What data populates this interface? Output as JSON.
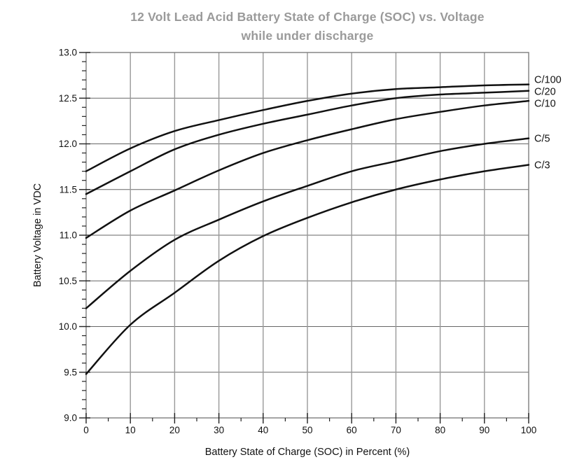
{
  "chart_data": {
    "type": "line",
    "title": "12 Volt Lead Acid Battery State of Charge (SOC) vs. Voltage while under discharge",
    "title_line1": "12 Volt Lead Acid Battery State of Charge (SOC) vs. Voltage",
    "title_line2": "while under discharge",
    "xlabel": "Battery State of Charge (SOC) in Percent (%)",
    "ylabel": "Battery Voltage in VDC",
    "xlim": [
      0,
      100
    ],
    "ylim": [
      9.0,
      13.0
    ],
    "x_tick_labels": [
      "0",
      "10",
      "20",
      "30",
      "40",
      "50",
      "60",
      "70",
      "80",
      "90",
      "100"
    ],
    "y_tick_labels": [
      "9.0",
      "9.5",
      "10.0",
      "10.5",
      "11.0",
      "11.5",
      "12.0",
      "12.5",
      "13.0"
    ],
    "x_minor_step": 5,
    "y_minor_step": 0.1,
    "grid": true,
    "legend_position": "labels-at-right-edge",
    "x": [
      0,
      10,
      20,
      30,
      40,
      50,
      60,
      70,
      80,
      90,
      100
    ],
    "series": [
      {
        "name": "C/100",
        "values": [
          11.7,
          11.95,
          12.14,
          12.26,
          12.37,
          12.47,
          12.55,
          12.6,
          12.62,
          12.64,
          12.65
        ]
      },
      {
        "name": "C/20",
        "values": [
          11.45,
          11.7,
          11.94,
          12.1,
          12.22,
          12.32,
          12.42,
          12.5,
          12.54,
          12.56,
          12.58
        ]
      },
      {
        "name": "C/10",
        "values": [
          10.97,
          11.27,
          11.49,
          11.71,
          11.9,
          12.04,
          12.16,
          12.27,
          12.35,
          12.42,
          12.47
        ]
      },
      {
        "name": "C/5",
        "values": [
          10.2,
          10.61,
          10.95,
          11.17,
          11.37,
          11.54,
          11.7,
          11.81,
          11.92,
          12.0,
          12.06
        ]
      },
      {
        "name": "C/3",
        "values": [
          9.48,
          10.02,
          10.37,
          10.72,
          10.99,
          11.19,
          11.36,
          11.5,
          11.61,
          11.7,
          11.77
        ]
      }
    ],
    "colors": {
      "curve": "#111111",
      "grid_horizontal": "#666666",
      "grid_vertical": "#999999",
      "border": "#7d7d7d",
      "tick": "#222222",
      "title": "#9a9a9a",
      "text": "#111111"
    }
  }
}
